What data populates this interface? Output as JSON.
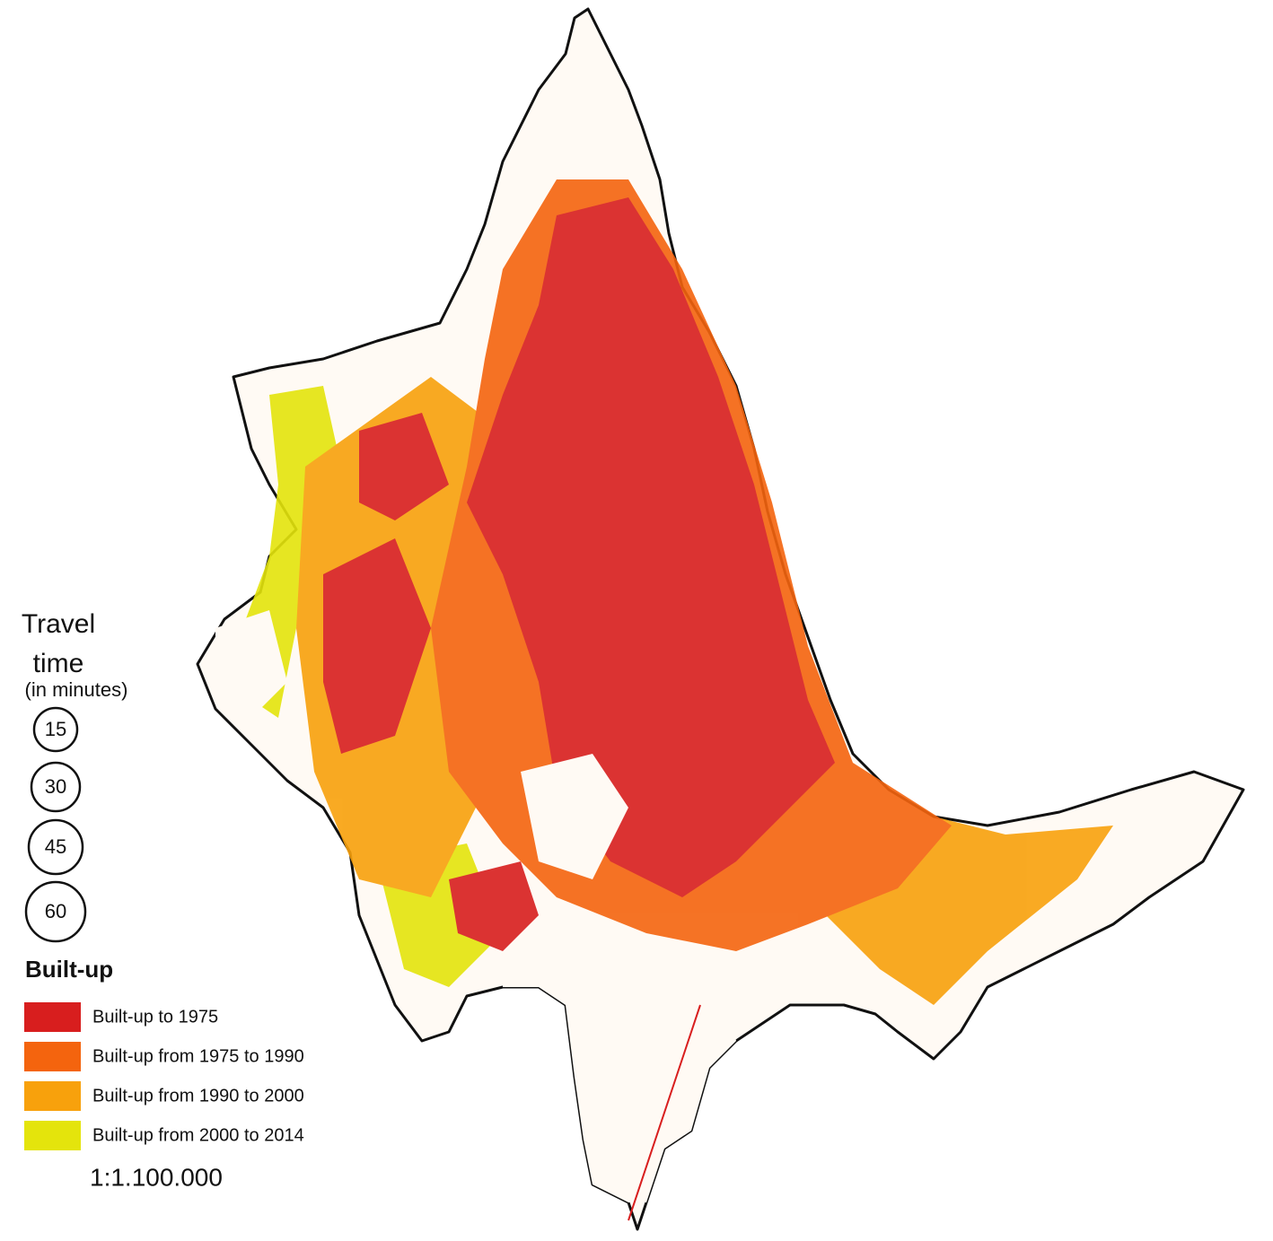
{
  "legend": {
    "travel_time": {
      "title": "Travel time",
      "subtitle": "(in minutes)",
      "circles": [
        15,
        30,
        45,
        60
      ]
    },
    "built_up": {
      "title": "Built-up",
      "items": [
        {
          "label": "Built-up to 1975",
          "color": "#d81e1e"
        },
        {
          "label": "Built-up from 1975 to 1990",
          "color": "#f4640e"
        },
        {
          "label": "Built-up from 1990 to 2000",
          "color": "#f8a10c"
        },
        {
          "label": "Built-up from 2000 to 2014",
          "color": "#e4e40c"
        }
      ]
    },
    "scale": "1:1.100.000"
  }
}
